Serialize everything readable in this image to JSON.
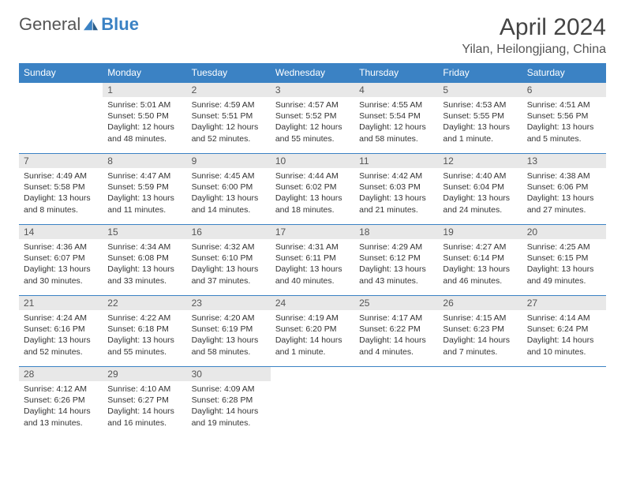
{
  "logo": {
    "text_general": "General",
    "text_blue": "Blue"
  },
  "header": {
    "month_title": "April 2024",
    "location": "Yilan, Heilongjiang, China"
  },
  "dow": [
    "Sunday",
    "Monday",
    "Tuesday",
    "Wednesday",
    "Thursday",
    "Friday",
    "Saturday"
  ],
  "colors": {
    "header_bg": "#3b82c4",
    "header_fg": "#ffffff",
    "daynum_bg": "#e8e8e8",
    "rule": "#3b82c4",
    "text": "#333333",
    "logo_blue": "#3b82c4"
  },
  "weeks": [
    [
      {
        "n": "",
        "sr": "",
        "ss": "",
        "dl": ""
      },
      {
        "n": "1",
        "sr": "Sunrise: 5:01 AM",
        "ss": "Sunset: 5:50 PM",
        "dl": "Daylight: 12 hours and 48 minutes."
      },
      {
        "n": "2",
        "sr": "Sunrise: 4:59 AM",
        "ss": "Sunset: 5:51 PM",
        "dl": "Daylight: 12 hours and 52 minutes."
      },
      {
        "n": "3",
        "sr": "Sunrise: 4:57 AM",
        "ss": "Sunset: 5:52 PM",
        "dl": "Daylight: 12 hours and 55 minutes."
      },
      {
        "n": "4",
        "sr": "Sunrise: 4:55 AM",
        "ss": "Sunset: 5:54 PM",
        "dl": "Daylight: 12 hours and 58 minutes."
      },
      {
        "n": "5",
        "sr": "Sunrise: 4:53 AM",
        "ss": "Sunset: 5:55 PM",
        "dl": "Daylight: 13 hours and 1 minute."
      },
      {
        "n": "6",
        "sr": "Sunrise: 4:51 AM",
        "ss": "Sunset: 5:56 PM",
        "dl": "Daylight: 13 hours and 5 minutes."
      }
    ],
    [
      {
        "n": "7",
        "sr": "Sunrise: 4:49 AM",
        "ss": "Sunset: 5:58 PM",
        "dl": "Daylight: 13 hours and 8 minutes."
      },
      {
        "n": "8",
        "sr": "Sunrise: 4:47 AM",
        "ss": "Sunset: 5:59 PM",
        "dl": "Daylight: 13 hours and 11 minutes."
      },
      {
        "n": "9",
        "sr": "Sunrise: 4:45 AM",
        "ss": "Sunset: 6:00 PM",
        "dl": "Daylight: 13 hours and 14 minutes."
      },
      {
        "n": "10",
        "sr": "Sunrise: 4:44 AM",
        "ss": "Sunset: 6:02 PM",
        "dl": "Daylight: 13 hours and 18 minutes."
      },
      {
        "n": "11",
        "sr": "Sunrise: 4:42 AM",
        "ss": "Sunset: 6:03 PM",
        "dl": "Daylight: 13 hours and 21 minutes."
      },
      {
        "n": "12",
        "sr": "Sunrise: 4:40 AM",
        "ss": "Sunset: 6:04 PM",
        "dl": "Daylight: 13 hours and 24 minutes."
      },
      {
        "n": "13",
        "sr": "Sunrise: 4:38 AM",
        "ss": "Sunset: 6:06 PM",
        "dl": "Daylight: 13 hours and 27 minutes."
      }
    ],
    [
      {
        "n": "14",
        "sr": "Sunrise: 4:36 AM",
        "ss": "Sunset: 6:07 PM",
        "dl": "Daylight: 13 hours and 30 minutes."
      },
      {
        "n": "15",
        "sr": "Sunrise: 4:34 AM",
        "ss": "Sunset: 6:08 PM",
        "dl": "Daylight: 13 hours and 33 minutes."
      },
      {
        "n": "16",
        "sr": "Sunrise: 4:32 AM",
        "ss": "Sunset: 6:10 PM",
        "dl": "Daylight: 13 hours and 37 minutes."
      },
      {
        "n": "17",
        "sr": "Sunrise: 4:31 AM",
        "ss": "Sunset: 6:11 PM",
        "dl": "Daylight: 13 hours and 40 minutes."
      },
      {
        "n": "18",
        "sr": "Sunrise: 4:29 AM",
        "ss": "Sunset: 6:12 PM",
        "dl": "Daylight: 13 hours and 43 minutes."
      },
      {
        "n": "19",
        "sr": "Sunrise: 4:27 AM",
        "ss": "Sunset: 6:14 PM",
        "dl": "Daylight: 13 hours and 46 minutes."
      },
      {
        "n": "20",
        "sr": "Sunrise: 4:25 AM",
        "ss": "Sunset: 6:15 PM",
        "dl": "Daylight: 13 hours and 49 minutes."
      }
    ],
    [
      {
        "n": "21",
        "sr": "Sunrise: 4:24 AM",
        "ss": "Sunset: 6:16 PM",
        "dl": "Daylight: 13 hours and 52 minutes."
      },
      {
        "n": "22",
        "sr": "Sunrise: 4:22 AM",
        "ss": "Sunset: 6:18 PM",
        "dl": "Daylight: 13 hours and 55 minutes."
      },
      {
        "n": "23",
        "sr": "Sunrise: 4:20 AM",
        "ss": "Sunset: 6:19 PM",
        "dl": "Daylight: 13 hours and 58 minutes."
      },
      {
        "n": "24",
        "sr": "Sunrise: 4:19 AM",
        "ss": "Sunset: 6:20 PM",
        "dl": "Daylight: 14 hours and 1 minute."
      },
      {
        "n": "25",
        "sr": "Sunrise: 4:17 AM",
        "ss": "Sunset: 6:22 PM",
        "dl": "Daylight: 14 hours and 4 minutes."
      },
      {
        "n": "26",
        "sr": "Sunrise: 4:15 AM",
        "ss": "Sunset: 6:23 PM",
        "dl": "Daylight: 14 hours and 7 minutes."
      },
      {
        "n": "27",
        "sr": "Sunrise: 4:14 AM",
        "ss": "Sunset: 6:24 PM",
        "dl": "Daylight: 14 hours and 10 minutes."
      }
    ],
    [
      {
        "n": "28",
        "sr": "Sunrise: 4:12 AM",
        "ss": "Sunset: 6:26 PM",
        "dl": "Daylight: 14 hours and 13 minutes."
      },
      {
        "n": "29",
        "sr": "Sunrise: 4:10 AM",
        "ss": "Sunset: 6:27 PM",
        "dl": "Daylight: 14 hours and 16 minutes."
      },
      {
        "n": "30",
        "sr": "Sunrise: 4:09 AM",
        "ss": "Sunset: 6:28 PM",
        "dl": "Daylight: 14 hours and 19 minutes."
      },
      {
        "n": "",
        "sr": "",
        "ss": "",
        "dl": ""
      },
      {
        "n": "",
        "sr": "",
        "ss": "",
        "dl": ""
      },
      {
        "n": "",
        "sr": "",
        "ss": "",
        "dl": ""
      },
      {
        "n": "",
        "sr": "",
        "ss": "",
        "dl": ""
      }
    ]
  ]
}
